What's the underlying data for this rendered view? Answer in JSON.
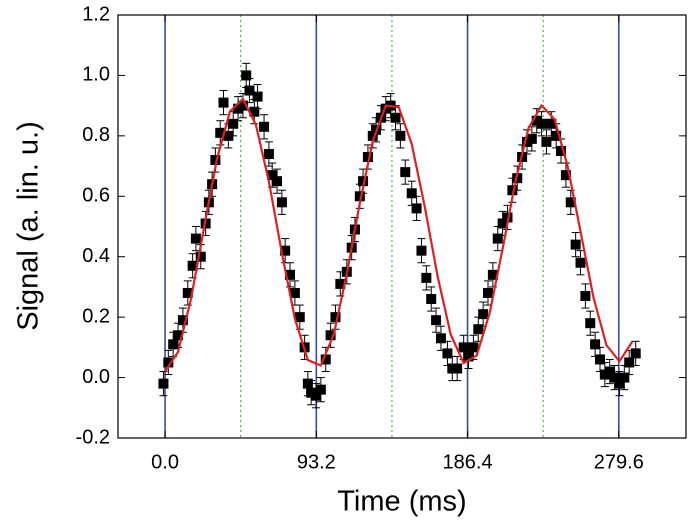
{
  "chart_data": {
    "type": "scatter",
    "x_label": "Time (ms)",
    "y_label": "Signal (a. lin. u.)",
    "xlim": [
      -29,
      321
    ],
    "ylim": [
      -0.2,
      1.2
    ],
    "xticks": [
      {
        "value": 0,
        "label": "0.0"
      },
      93.2,
      186.4,
      279.6
    ],
    "yticks": [
      -0.2,
      {
        "value": 0,
        "label": "0.0"
      },
      0.2,
      0.4,
      0.6,
      0.8,
      {
        "value": 1,
        "label": "1.0"
      },
      1.2
    ],
    "vlines": [
      {
        "x": [
          0,
          93.2,
          186.4,
          279.6
        ],
        "color": "#3a4aa8",
        "style": "solid"
      },
      {
        "x": [
          46.6,
          139.8,
          233.0
        ],
        "color": "#5cb85c",
        "style": "dotted"
      }
    ],
    "series": [
      {
        "color": "#000000",
        "mode": "markers",
        "error": 0.04,
        "x": [
          -1,
          2,
          5,
          8,
          11,
          14,
          17,
          19,
          22,
          25,
          27,
          29,
          31,
          34,
          36,
          39,
          42,
          45,
          48,
          50,
          52,
          55,
          57,
          61,
          64,
          66,
          69,
          72,
          74,
          77,
          80,
          83,
          86,
          88,
          90,
          93,
          96,
          99,
          102,
          105,
          108,
          112,
          115,
          117,
          120,
          122,
          125,
          128,
          130,
          133,
          136,
          139,
          142,
          145,
          148,
          152,
          155,
          158,
          161,
          164,
          167,
          170,
          174,
          177,
          180,
          184,
          187,
          190,
          193,
          196,
          199,
          202,
          205,
          208,
          211,
          214,
          217,
          220,
          223,
          226,
          229,
          232,
          235,
          238,
          241,
          244,
          247,
          250,
          253,
          256,
          259,
          262,
          265,
          268,
          271,
          274,
          277,
          280,
          283,
          286,
          290
        ],
        "values": [
          -0.02,
          0.05,
          0.11,
          0.14,
          0.19,
          0.28,
          0.37,
          0.46,
          0.4,
          0.51,
          0.58,
          0.64,
          0.72,
          0.81,
          0.91,
          0.8,
          0.84,
          0.89,
          0.9,
          1.0,
          0.95,
          0.88,
          0.93,
          0.83,
          0.74,
          0.67,
          0.65,
          0.58,
          0.42,
          0.34,
          0.28,
          0.2,
          0.1,
          -0.02,
          -0.05,
          -0.06,
          -0.04,
          0.06,
          0.14,
          0.2,
          0.31,
          0.35,
          0.43,
          0.49,
          0.6,
          0.65,
          0.73,
          0.8,
          0.82,
          0.86,
          0.89,
          0.9,
          0.86,
          0.8,
          0.68,
          0.61,
          0.56,
          0.42,
          0.33,
          0.26,
          0.19,
          0.13,
          0.08,
          0.03,
          0.03,
          0.1,
          0.07,
          0.1,
          0.16,
          0.21,
          0.28,
          0.34,
          0.46,
          0.51,
          0.53,
          0.62,
          0.66,
          0.73,
          0.78,
          0.79,
          0.85,
          0.84,
          0.78,
          0.84,
          0.8,
          0.75,
          0.67,
          0.58,
          0.44,
          0.38,
          0.27,
          0.18,
          0.11,
          0.06,
          0.01,
          0.02,
          0.0,
          -0.02,
          0.0,
          0.05,
          0.08
        ]
      },
      {
        "color": "#e02020",
        "mode": "line",
        "x": [
          0,
          8,
          16,
          24,
          32,
          40,
          48,
          56,
          64,
          72,
          80,
          88,
          96,
          104,
          112,
          120,
          128,
          136,
          144,
          152,
          160,
          168,
          176,
          184,
          192,
          200,
          208,
          216,
          224,
          232,
          240,
          248,
          256,
          264,
          272,
          280,
          288
        ],
        "values": [
          0.02,
          0.085,
          0.261,
          0.496,
          0.724,
          0.881,
          0.922,
          0.836,
          0.648,
          0.412,
          0.195,
          0.058,
          0.04,
          0.144,
          0.343,
          0.578,
          0.783,
          0.9,
          0.895,
          0.773,
          0.566,
          0.334,
          0.143,
          0.048,
          0.073,
          0.213,
          0.426,
          0.652,
          0.826,
          0.901,
          0.855,
          0.701,
          0.484,
          0.265,
          0.107,
          0.054,
          0.12
        ]
      }
    ]
  }
}
